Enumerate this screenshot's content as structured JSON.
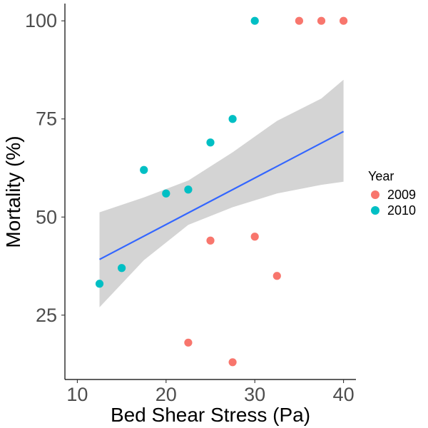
{
  "chart_data": {
    "type": "scatter",
    "title": "",
    "xlabel": "Bed Shear Stress (Pa)",
    "ylabel": "Mortality (%)",
    "xlim": [
      8.6,
      41.4
    ],
    "ylim": [
      8.6,
      104.4
    ],
    "x_ticks": [
      10,
      20,
      30,
      40
    ],
    "y_ticks": [
      25,
      50,
      75,
      100
    ],
    "grid": false,
    "legend": {
      "title": "Year",
      "position": "right"
    },
    "colors": {
      "2009": "#F8766D",
      "2010": "#00BFC4",
      "line": "#3366FF",
      "band": "#CCCCCC"
    },
    "series": [
      {
        "name": "2009",
        "points": [
          {
            "x": 22.5,
            "y": 18
          },
          {
            "x": 25,
            "y": 44
          },
          {
            "x": 27.5,
            "y": 13
          },
          {
            "x": 30,
            "y": 45
          },
          {
            "x": 32.5,
            "y": 35
          },
          {
            "x": 35,
            "y": 100
          },
          {
            "x": 37.5,
            "y": 100
          },
          {
            "x": 40,
            "y": 100
          }
        ]
      },
      {
        "name": "2010",
        "points": [
          {
            "x": 12.5,
            "y": 33
          },
          {
            "x": 15,
            "y": 37
          },
          {
            "x": 17.5,
            "y": 62
          },
          {
            "x": 20,
            "y": 56
          },
          {
            "x": 22.5,
            "y": 57
          },
          {
            "x": 25,
            "y": 69
          },
          {
            "x": 27.5,
            "y": 75
          },
          {
            "x": 30,
            "y": 100
          }
        ]
      }
    ],
    "trend": {
      "method": "linear",
      "x": [
        12.5,
        40
      ],
      "y": [
        39.2,
        71.8
      ],
      "ci_upper": [
        {
          "x": 12.5,
          "y": 51.2
        },
        {
          "x": 17.5,
          "y": 55.0
        },
        {
          "x": 22.5,
          "y": 59.3
        },
        {
          "x": 27.5,
          "y": 66.5
        },
        {
          "x": 32.5,
          "y": 74.5
        },
        {
          "x": 37.5,
          "y": 80.2
        },
        {
          "x": 40,
          "y": 85.0
        }
      ],
      "ci_lower": [
        {
          "x": 12.5,
          "y": 27.0
        },
        {
          "x": 17.5,
          "y": 39.0
        },
        {
          "x": 22.5,
          "y": 48.0
        },
        {
          "x": 27.5,
          "y": 52.5
        },
        {
          "x": 32.5,
          "y": 56.0
        },
        {
          "x": 37.5,
          "y": 58.2
        },
        {
          "x": 40,
          "y": 59.0
        }
      ]
    }
  }
}
